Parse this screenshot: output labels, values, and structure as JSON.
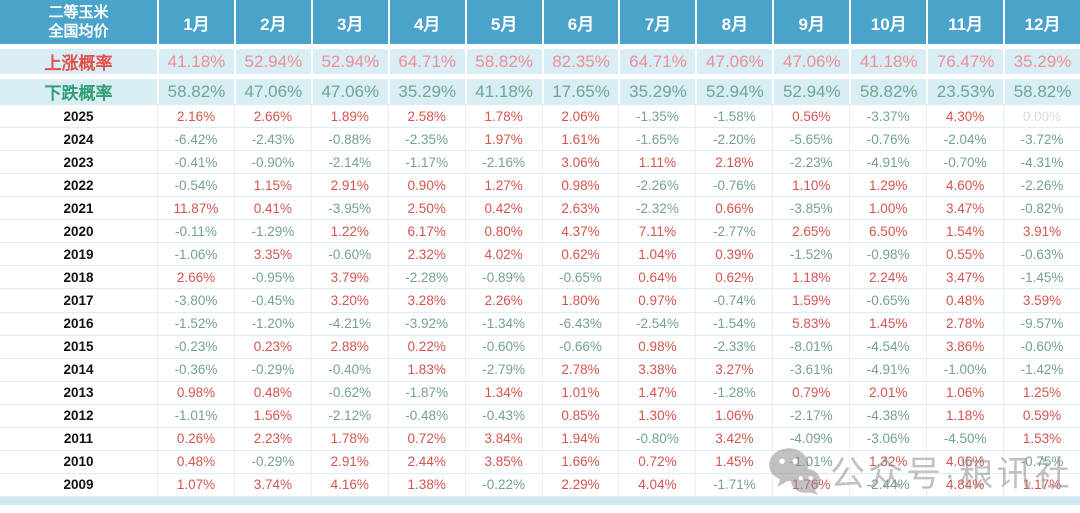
{
  "chart_data": {
    "type": "table",
    "corner_header": [
      "二等玉米",
      "全国均价"
    ],
    "months": [
      "1月",
      "2月",
      "3月",
      "4月",
      "5月",
      "6月",
      "7月",
      "8月",
      "9月",
      "10月",
      "11月",
      "12月"
    ],
    "rise_probability": {
      "label": "上涨概率",
      "values": [
        "41.18%",
        "52.94%",
        "52.94%",
        "64.71%",
        "58.82%",
        "82.35%",
        "64.71%",
        "47.06%",
        "47.06%",
        "41.18%",
        "76.47%",
        "35.29%"
      ]
    },
    "fall_probability": {
      "label": "下跌概率",
      "values": [
        "58.82%",
        "47.06%",
        "47.06%",
        "35.29%",
        "41.18%",
        "17.65%",
        "35.29%",
        "52.94%",
        "52.94%",
        "58.82%",
        "23.53%",
        "58.82%"
      ]
    },
    "rows": [
      {
        "year": "2025",
        "values": [
          "2.16%",
          "2.66%",
          "1.89%",
          "2.58%",
          "1.78%",
          "2.06%",
          "-1.35%",
          "-1.58%",
          "0.56%",
          "-3.37%",
          "4.30%",
          "0.00%"
        ]
      },
      {
        "year": "2024",
        "values": [
          "-6.42%",
          "-2.43%",
          "-0.88%",
          "-2.35%",
          "1.97%",
          "1.61%",
          "-1.65%",
          "-2.20%",
          "-5.65%",
          "-0.76%",
          "-2.04%",
          "-3.72%"
        ]
      },
      {
        "year": "2023",
        "values": [
          "-0.41%",
          "-0.90%",
          "-2.14%",
          "-1.17%",
          "-2.16%",
          "3.06%",
          "1.11%",
          "2.18%",
          "-2.23%",
          "-4.91%",
          "-0.70%",
          "-4.31%"
        ]
      },
      {
        "year": "2022",
        "values": [
          "-0.54%",
          "1.15%",
          "2.91%",
          "0.90%",
          "1.27%",
          "0.98%",
          "-2.26%",
          "-0.76%",
          "1.10%",
          "1.29%",
          "4.60%",
          "-2.26%"
        ]
      },
      {
        "year": "2021",
        "values": [
          "11.87%",
          "0.41%",
          "-3.95%",
          "2.50%",
          "0.42%",
          "2.63%",
          "-2.32%",
          "0.66%",
          "-3.85%",
          "1.00%",
          "3.47%",
          "-0.82%"
        ]
      },
      {
        "year": "2020",
        "values": [
          "-0.11%",
          "-1.29%",
          "1.22%",
          "6.17%",
          "0.80%",
          "4.37%",
          "7.11%",
          "-2.77%",
          "2.65%",
          "6.50%",
          "1.54%",
          "3.91%"
        ]
      },
      {
        "year": "2019",
        "values": [
          "-1.06%",
          "3.35%",
          "-0.60%",
          "2.32%",
          "4.02%",
          "0.62%",
          "1.04%",
          "0.39%",
          "-1.52%",
          "-0.98%",
          "0.55%",
          "-0.63%"
        ]
      },
      {
        "year": "2018",
        "values": [
          "2.66%",
          "-0.95%",
          "3.79%",
          "-2.28%",
          "-0.89%",
          "-0.65%",
          "0.64%",
          "0.62%",
          "1.18%",
          "2.24%",
          "3.47%",
          "-1.45%"
        ]
      },
      {
        "year": "2017",
        "values": [
          "-3.80%",
          "-0.45%",
          "3.20%",
          "3.28%",
          "2.26%",
          "1.80%",
          "0.97%",
          "-0.74%",
          "1.59%",
          "-0.65%",
          "0.48%",
          "3.59%"
        ]
      },
      {
        "year": "2016",
        "values": [
          "-1.52%",
          "-1.20%",
          "-4.21%",
          "-3.92%",
          "-1.34%",
          "-6.43%",
          "-2.54%",
          "-1.54%",
          "5.83%",
          "1.45%",
          "2.78%",
          "-9.57%"
        ]
      },
      {
        "year": "2015",
        "values": [
          "-0.23%",
          "0.23%",
          "2.88%",
          "0.22%",
          "-0.60%",
          "-0.66%",
          "0.98%",
          "-2.33%",
          "-8.01%",
          "-4.54%",
          "3.86%",
          "-0.60%"
        ]
      },
      {
        "year": "2014",
        "values": [
          "-0.36%",
          "-0.29%",
          "-0.40%",
          "1.83%",
          "-2.79%",
          "2.78%",
          "3.38%",
          "3.27%",
          "-3.61%",
          "-4.91%",
          "-1.00%",
          "-1.42%"
        ]
      },
      {
        "year": "2013",
        "values": [
          "0.98%",
          "0.48%",
          "-0.62%",
          "-1.87%",
          "1.34%",
          "1.01%",
          "1.47%",
          "-1.28%",
          "0.79%",
          "2.01%",
          "1.06%",
          "1.25%"
        ]
      },
      {
        "year": "2012",
        "values": [
          "-1.01%",
          "1.56%",
          "-2.12%",
          "-0.48%",
          "-0.43%",
          "0.85%",
          "1.30%",
          "1.06%",
          "-2.17%",
          "-4.38%",
          "1.18%",
          "0.59%"
        ]
      },
      {
        "year": "2011",
        "values": [
          "0.26%",
          "2.23%",
          "1.78%",
          "0.72%",
          "3.84%",
          "1.94%",
          "-0.80%",
          "3.42%",
          "-4.09%",
          "-3.06%",
          "-4.50%",
          "1.53%"
        ]
      },
      {
        "year": "2010",
        "values": [
          "0.48%",
          "-0.29%",
          "2.91%",
          "2.44%",
          "3.85%",
          "1.66%",
          "0.72%",
          "1.45%",
          "-1.01%",
          "1.32%",
          "4.06%",
          "-0.75%"
        ]
      },
      {
        "year": "2009",
        "values": [
          "1.07%",
          "3.74%",
          "4.16%",
          "1.38%",
          "-0.22%",
          "2.29%",
          "4.04%",
          "-1.71%",
          "1.76%",
          "-2.44%",
          "4.84%",
          "1.17%"
        ]
      }
    ]
  },
  "watermark": {
    "text": "公众号·粮讯社",
    "icon": "wechat-icon"
  },
  "colors": {
    "header_bg": "#49a3cb",
    "prob_row_bg": "#d9edf4",
    "rise_label": "#e2504c",
    "rise_value": "#ee8e96",
    "fall_label": "#2f9e76",
    "fall_value": "#6da794",
    "up_value": "#d6544e",
    "down_value": "#73a292",
    "flat_value": "#dadada",
    "bottom_strip": "#cde9f2"
  }
}
